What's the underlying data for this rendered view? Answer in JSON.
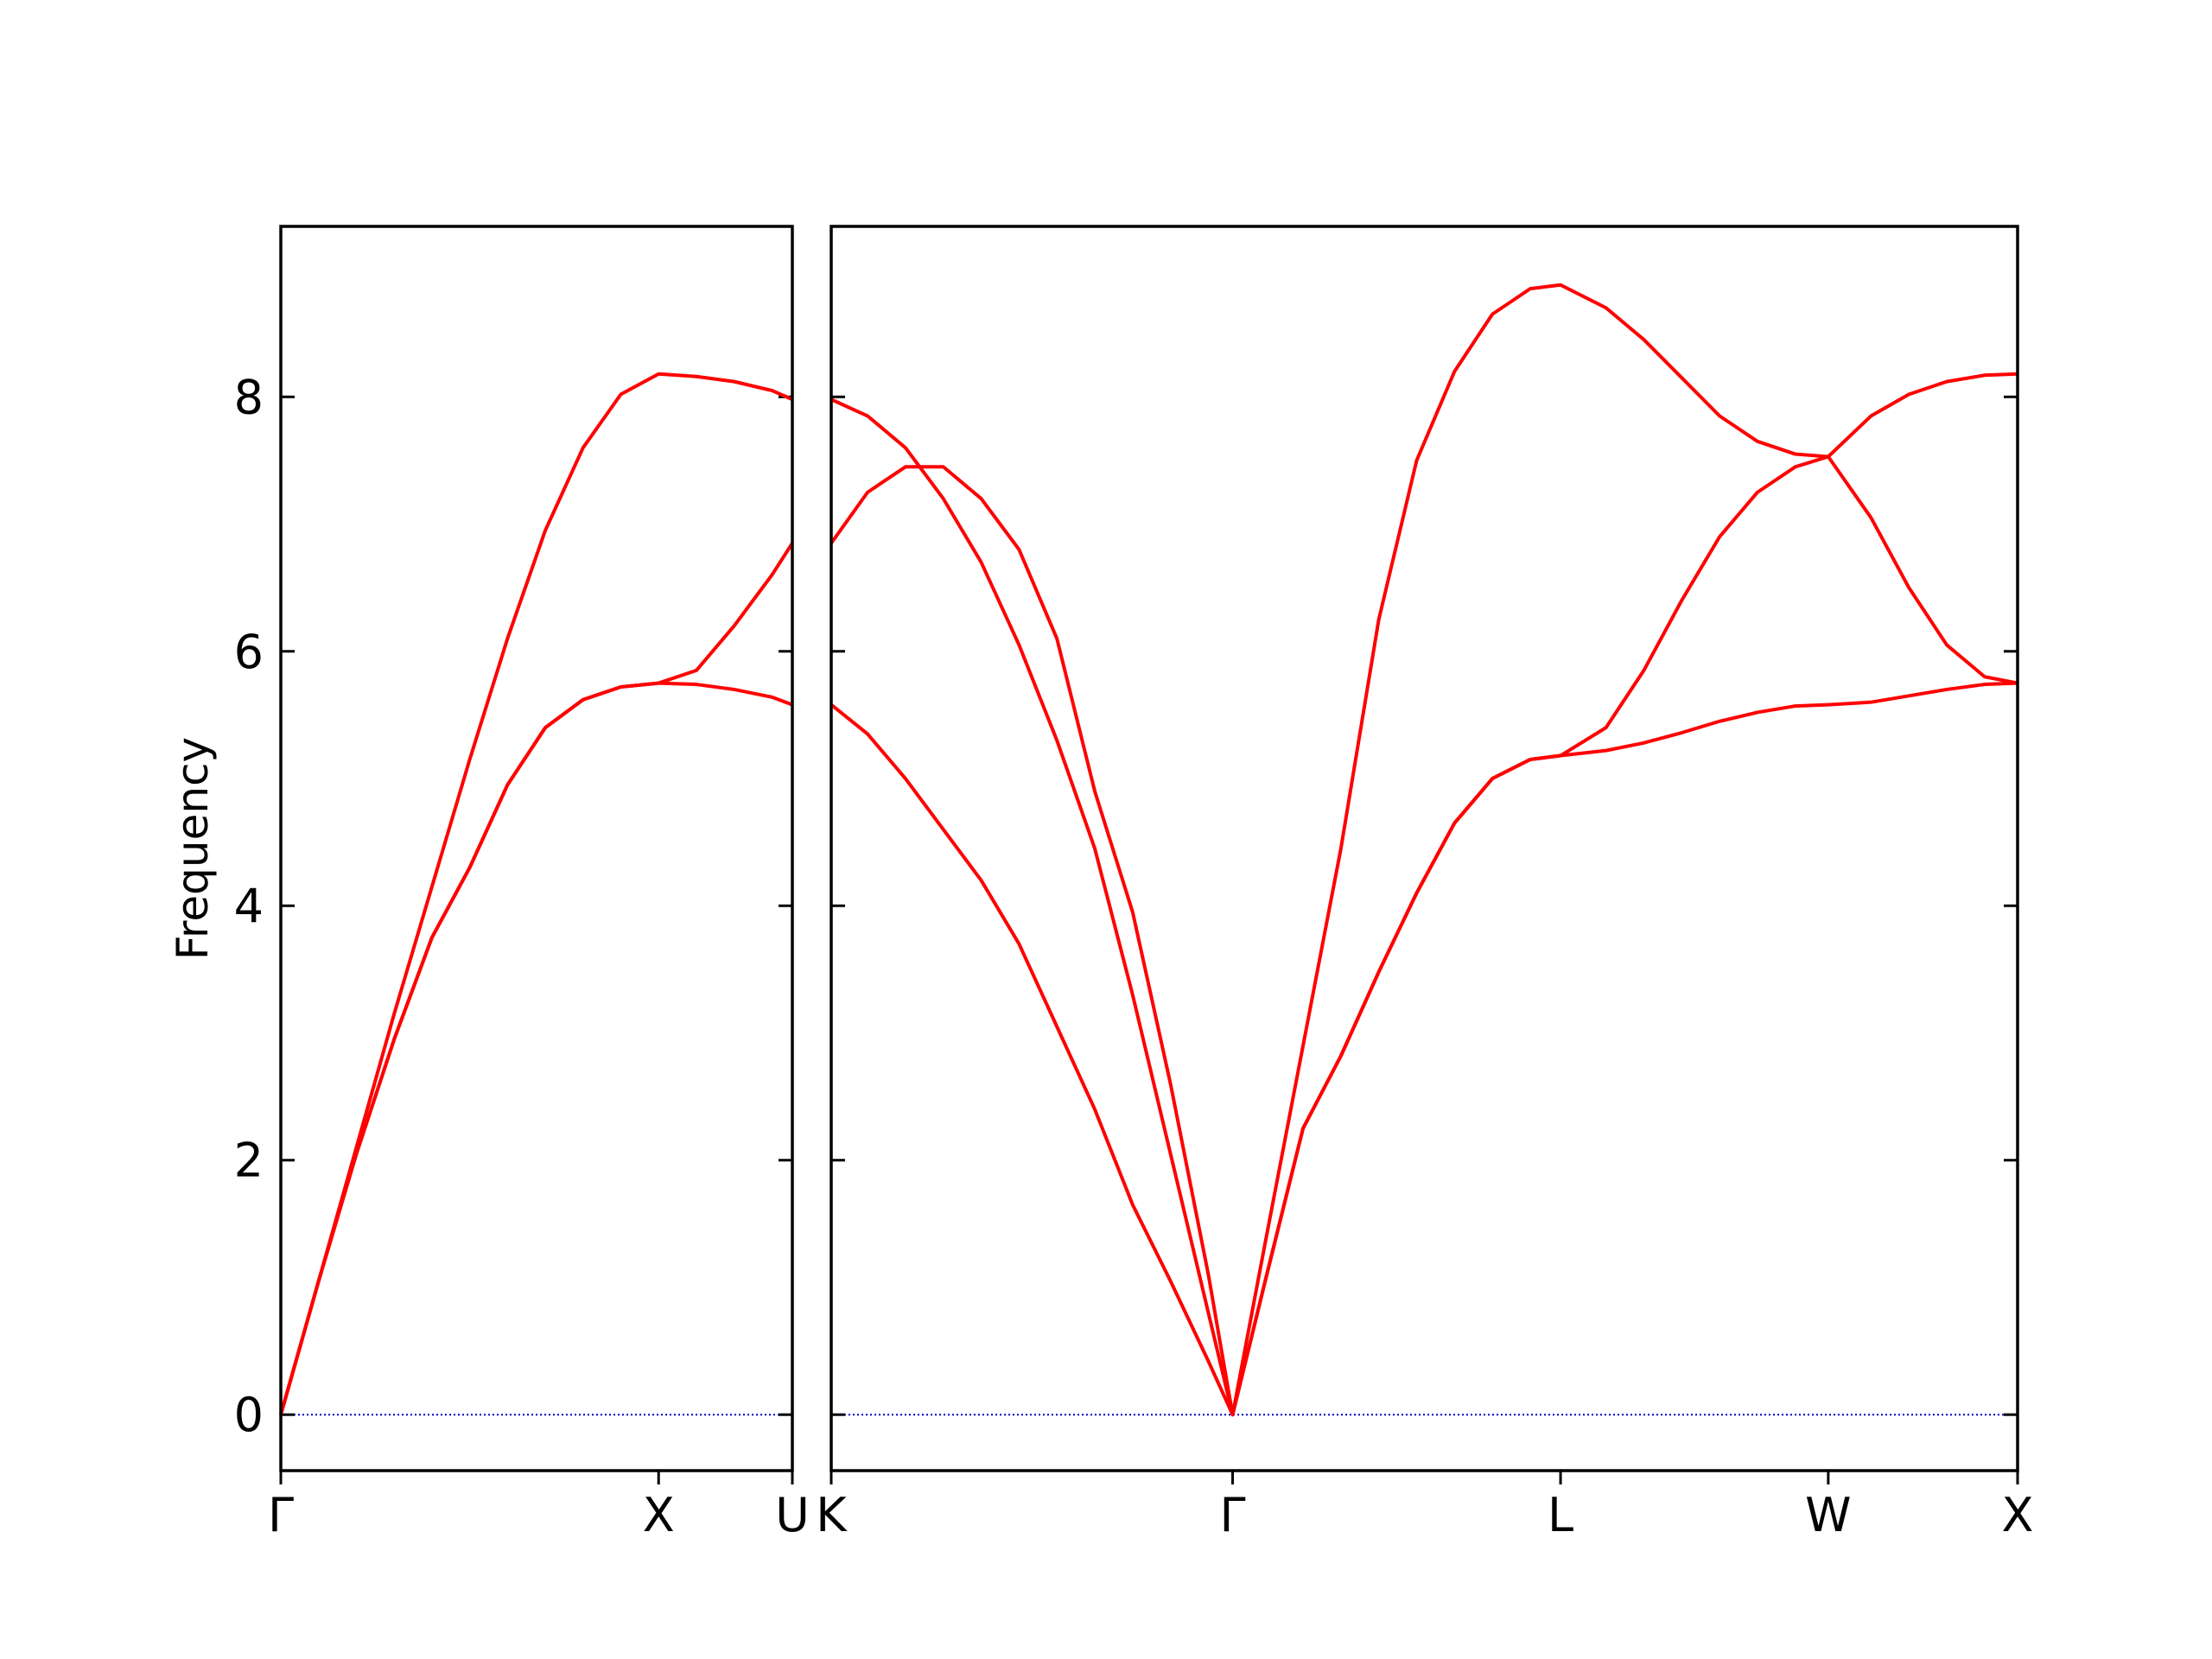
{
  "chart_data": [
    {
      "type": "line",
      "ylabel": "Frequency",
      "x": [
        0,
        0.1,
        0.2,
        0.3,
        0.4,
        0.5,
        0.6,
        0.7,
        0.8,
        0.9,
        1.0,
        1.1,
        1.2,
        1.3,
        1.354
      ],
      "series": [
        {
          "color": "#ff0000",
          "values": [
            0,
            1.05,
            2.1,
            3.15,
            4.15,
            5.15,
            6.1,
            6.95,
            7.6,
            8.02,
            8.18,
            8.16,
            8.12,
            8.05,
            7.98
          ]
        },
        {
          "color": "#ff0000",
          "values": [
            0,
            1.05,
            2.05,
            2.95,
            3.75,
            4.3,
            4.95,
            5.4,
            5.62,
            5.72,
            5.75,
            5.85,
            6.2,
            6.6,
            6.85
          ]
        },
        {
          "color": "#ff0000",
          "values": [
            0,
            1.05,
            2.05,
            2.95,
            3.75,
            4.3,
            4.95,
            5.4,
            5.62,
            5.72,
            5.75,
            5.74,
            5.7,
            5.64,
            5.58
          ]
        }
      ],
      "xlim": [
        0,
        1.354
      ],
      "ylim": [
        -0.44,
        9.34
      ],
      "xticks": [
        {
          "value": 0,
          "label": "Γ"
        },
        {
          "value": 1.0,
          "label": "X"
        },
        {
          "value": 1.354,
          "label": "U"
        }
      ],
      "yticks": [
        0,
        2,
        4,
        6,
        8
      ],
      "ytick_labels": true,
      "hline": {
        "y": 0,
        "color": "#0000cc"
      }
    },
    {
      "type": "line",
      "x": [
        1.354,
        1.45,
        1.55,
        1.65,
        1.75,
        1.85,
        1.95,
        2.05,
        2.15,
        2.25,
        2.35,
        2.414,
        2.5,
        2.6,
        2.7,
        2.8,
        2.9,
        3.0,
        3.1,
        3.2,
        3.28,
        3.4,
        3.5,
        3.6,
        3.7,
        3.8,
        3.9,
        3.987,
        4.1,
        4.2,
        4.3,
        4.4,
        4.487
      ],
      "series": [
        {
          "color": "#ff0000",
          "values": [
            7.98,
            7.85,
            7.6,
            7.2,
            6.7,
            6.05,
            5.3,
            4.45,
            3.3,
            2.05,
            0.8,
            0,
            1.35,
            2.9,
            4.45,
            6.25,
            7.5,
            8.2,
            8.65,
            8.85,
            8.88,
            8.7,
            8.45,
            8.15,
            7.85,
            7.65,
            7.55,
            7.53,
            7.85,
            8.02,
            8.12,
            8.17,
            8.18
          ]
        },
        {
          "color": "#ff0000",
          "values": [
            6.85,
            7.25,
            7.45,
            7.45,
            7.2,
            6.8,
            6.1,
            4.9,
            3.95,
            2.6,
            1.1,
            0,
            1.05,
            2.25,
            2.82,
            3.48,
            4.1,
            4.65,
            5.0,
            5.15,
            5.18,
            5.4,
            5.85,
            6.4,
            6.9,
            7.25,
            7.45,
            7.53,
            7.05,
            6.5,
            6.05,
            5.8,
            5.75
          ]
        },
        {
          "color": "#ff0000",
          "values": [
            5.58,
            5.35,
            5.0,
            4.6,
            4.2,
            3.7,
            3.05,
            2.4,
            1.65,
            1.05,
            0.42,
            0,
            1.05,
            2.25,
            2.82,
            3.48,
            4.1,
            4.65,
            5.0,
            5.15,
            5.18,
            5.22,
            5.28,
            5.36,
            5.45,
            5.52,
            5.57,
            5.58,
            5.6,
            5.65,
            5.7,
            5.74,
            5.75
          ]
        }
      ],
      "xlim": [
        1.354,
        4.487
      ],
      "ylim": [
        -0.44,
        9.34
      ],
      "xticks": [
        {
          "value": 1.354,
          "label": "K"
        },
        {
          "value": 2.414,
          "label": "Γ"
        },
        {
          "value": 3.28,
          "label": "L"
        },
        {
          "value": 3.987,
          "label": "W"
        },
        {
          "value": 4.487,
          "label": "X"
        }
      ],
      "yticks": [
        0,
        2,
        4,
        6,
        8
      ],
      "ytick_labels": false,
      "hline": {
        "y": 0,
        "color": "#0000cc"
      }
    }
  ]
}
